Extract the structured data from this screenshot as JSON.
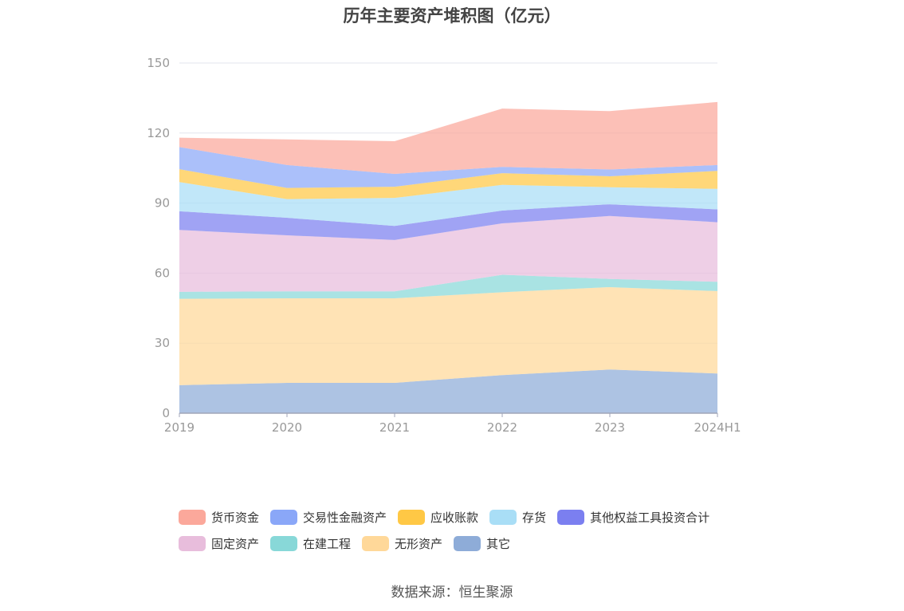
{
  "chart_data": {
    "type": "area",
    "stacked": true,
    "title": "历年主要资产堆积图（亿元）",
    "categories": [
      "2019",
      "2020",
      "2021",
      "2022",
      "2023",
      "2024H1"
    ],
    "ylim": [
      0,
      150
    ],
    "yticks": [
      0,
      30,
      60,
      90,
      120,
      150
    ],
    "grid": true,
    "legend_position": "bottom",
    "series": [
      {
        "name": "其它",
        "color": "#8eacd8",
        "values": [
          12,
          13,
          13,
          16.3,
          18.7,
          17
        ]
      },
      {
        "name": "无形资产",
        "color": "#ffd899",
        "values": [
          37,
          36.2,
          36.2,
          35.5,
          35.3,
          35.3
        ]
      },
      {
        "name": "在建工程",
        "color": "#88d8d8",
        "values": [
          3,
          3,
          3,
          7.5,
          3.5,
          4
        ]
      },
      {
        "name": "固定资产",
        "color": "#e8bddc",
        "values": [
          26.5,
          24,
          22,
          22,
          27,
          25.5
        ]
      },
      {
        "name": "其他权益工具投资合计",
        "color": "#7b7ff0",
        "values": [
          8,
          7.5,
          6,
          5.5,
          5,
          5.5
        ]
      },
      {
        "name": "存货",
        "color": "#a9def6",
        "values": [
          12.5,
          8,
          12,
          11,
          7.3,
          8.8
        ]
      },
      {
        "name": "应收账款",
        "color": "#ffc845",
        "values": [
          5.5,
          4.8,
          4.8,
          5,
          4.7,
          7.7
        ]
      },
      {
        "name": "交易性金融资产",
        "color": "#8aa7f8",
        "values": [
          9.5,
          9.8,
          5.5,
          2.7,
          2.9,
          2.5
        ]
      },
      {
        "name": "货币资金",
        "color": "#fba89b",
        "values": [
          4,
          11,
          14,
          25,
          25,
          27
        ]
      }
    ],
    "legend_order": [
      "货币资金",
      "交易性金融资产",
      "应收账款",
      "存货",
      "其他权益工具投资合计",
      "固定资产",
      "在建工程",
      "无形资产",
      "其它"
    ]
  },
  "source_text": "数据来源：恒生聚源"
}
